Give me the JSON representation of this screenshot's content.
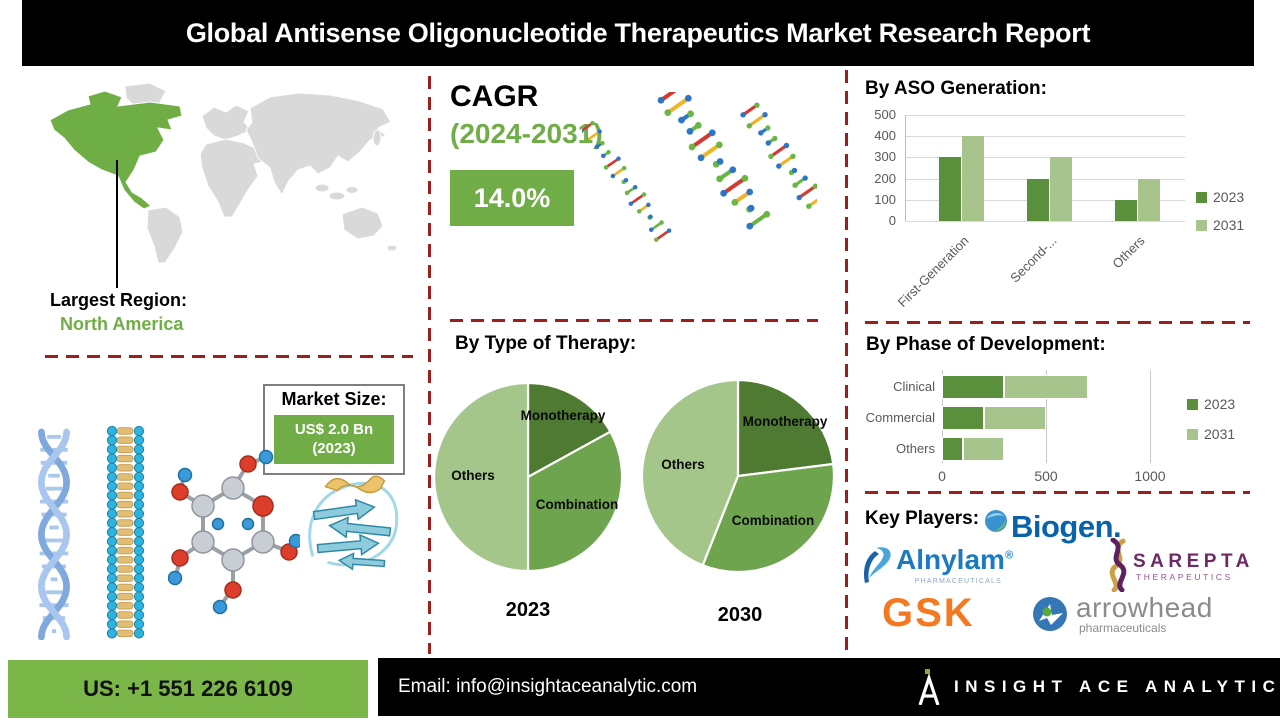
{
  "header": {
    "title": "Global Antisense Oligonucleotide Therapeutics Market Research Report"
  },
  "map": {
    "largest_region_label": "Largest Region:",
    "largest_region_value": "North America",
    "highlight_color": "#6fae44",
    "land_color": "#d9d9d9"
  },
  "cagr": {
    "label": "CAGR",
    "period": "(2024-2031)",
    "value": "14.0%",
    "accent_color": "#70ad47"
  },
  "market_size": {
    "label": "Market Size:",
    "value": "US$ 2.0 Bn",
    "year": "(2023)"
  },
  "sections": {
    "therapy": "By Type of Therapy:"
  },
  "chart_data": [
    {
      "id": "aso_generation",
      "type": "bar",
      "title": "By ASO Generation:",
      "categories": [
        "First-Generation",
        "Second-...",
        "Others"
      ],
      "series": [
        {
          "name": "2023",
          "color": "#5a8f3c",
          "values": [
            300,
            200,
            100
          ]
        },
        {
          "name": "2031",
          "color": "#a7c48d",
          "values": [
            400,
            300,
            200
          ]
        }
      ],
      "ylim": [
        0,
        500
      ],
      "yticks": [
        0,
        100,
        200,
        300,
        400,
        500
      ],
      "grid": true,
      "legend_position": "right"
    },
    {
      "id": "therapy_2023",
      "type": "pie",
      "year_label": "2023",
      "slices": [
        {
          "label": "Monotherapy",
          "pct": 17,
          "color": "#4e7b31"
        },
        {
          "label": "Combination",
          "pct": 33,
          "color": "#6ea44d"
        },
        {
          "label": "Others",
          "pct": 50,
          "color": "#a5c68a"
        }
      ]
    },
    {
      "id": "therapy_2030",
      "type": "pie",
      "year_label": "2030",
      "slices": [
        {
          "label": "Monotherapy",
          "pct": 23,
          "color": "#4e7b31"
        },
        {
          "label": "Combination",
          "pct": 33,
          "color": "#6ea44d"
        },
        {
          "label": "Others",
          "pct": 44,
          "color": "#a5c68a"
        }
      ]
    },
    {
      "id": "phase_development",
      "type": "bar-h-stacked",
      "title": "By Phase of Development:",
      "categories": [
        "Clinical",
        "Commercial",
        "Others"
      ],
      "series": [
        {
          "name": "2023",
          "color": "#5a8f3c",
          "values": [
            300,
            200,
            100
          ]
        },
        {
          "name": "2031",
          "color": "#a7c48d",
          "values": [
            400,
            300,
            200
          ]
        }
      ],
      "xlim": [
        0,
        1200
      ],
      "xticks": [
        0,
        500,
        1000
      ],
      "grid": true,
      "legend_position": "right"
    }
  ],
  "key_players": {
    "label": "Key Players:",
    "companies": [
      {
        "name": "Biogen."
      },
      {
        "name": "Alnylam",
        "reg": "®",
        "sub": "PHARMACEUTICALS"
      },
      {
        "name": "SAREPTA",
        "sub": "THERAPEUTICS"
      },
      {
        "name": "GSK"
      },
      {
        "name": "arrowhead",
        "sub": "pharmaceuticals"
      }
    ]
  },
  "footer": {
    "phone": "US: +1 551 226 6109",
    "email": "Email: info@insightaceanalytic.com",
    "brand": "INSIGHT ACE ANALYTIC",
    "accent_color": "#7ab648"
  },
  "colors": {
    "dark_green": "#5a8f3c",
    "light_green": "#a7c48d",
    "mid_green": "#6ea44d",
    "accent_green": "#70ad47",
    "footer_green": "#7ab648",
    "dashed_red": "#9e1d1d",
    "land_gray": "#d9d9d9"
  },
  "icons": [
    "world-map",
    "map-pointer-line",
    "dna-strands-illustration",
    "dna-double-helix-icon",
    "lipid-bilayer-icon",
    "sugar-molecule-icon",
    "protein-ribbon-icon",
    "biogen-globe-icon",
    "alnylam-swoosh-icon",
    "sarepta-helix-icon",
    "arrowhead-circle-icon",
    "insight-ace-logo-icon"
  ]
}
